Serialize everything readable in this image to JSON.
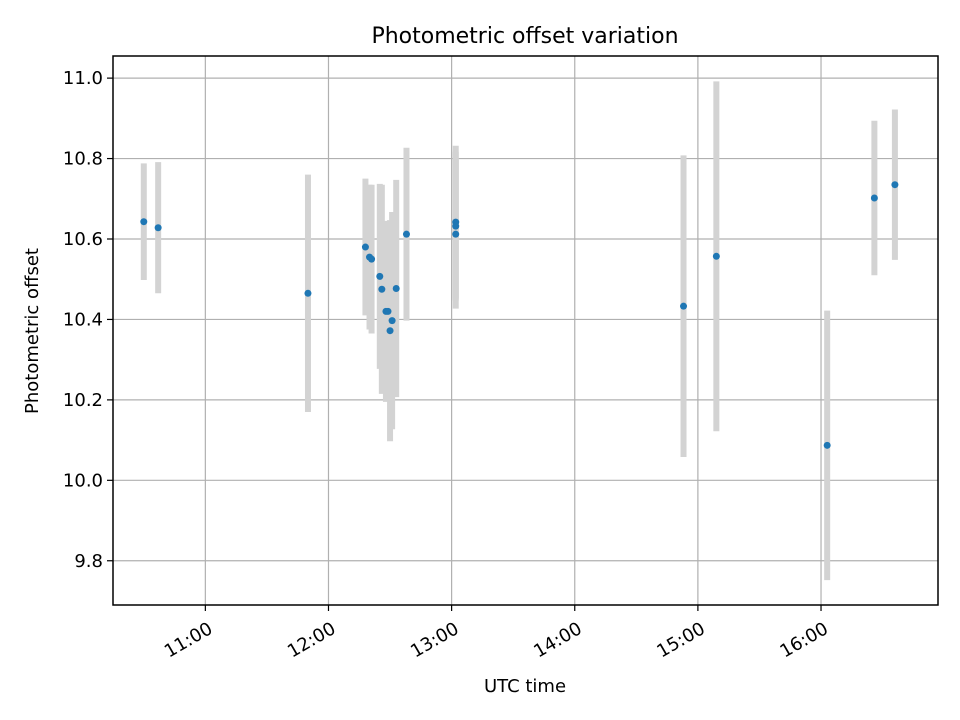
{
  "chart_data": {
    "type": "scatter",
    "title": "Photometric offset variation",
    "xlabel": "UTC time",
    "ylabel": "Photometric offset",
    "xlim": [
      "10:15",
      "16:57"
    ],
    "ylim": [
      9.69,
      11.055
    ],
    "grid": true,
    "error_bar_color": "#d3d3d3",
    "point_color": "#1f77b4",
    "x_ticks": [
      "11:00",
      "12:00",
      "13:00",
      "14:00",
      "15:00",
      "16:00"
    ],
    "y_ticks": [
      9.8,
      10.0,
      10.2,
      10.4,
      10.6,
      10.8,
      11.0
    ],
    "y_tick_labels": [
      "9.8",
      "10.0",
      "10.2",
      "10.4",
      "10.6",
      "10.8",
      "11.0"
    ],
    "points": [
      {
        "x": "10:30",
        "y": 10.643,
        "err": 0.145
      },
      {
        "x": "10:37",
        "y": 10.628,
        "err": 0.163
      },
      {
        "x": "11:50",
        "y": 10.465,
        "err": 0.295
      },
      {
        "x": "12:18",
        "y": 10.58,
        "err": 0.17
      },
      {
        "x": "12:20",
        "y": 10.555,
        "err": 0.18
      },
      {
        "x": "12:21",
        "y": 10.55,
        "err": 0.185
      },
      {
        "x": "12:25",
        "y": 10.507,
        "err": 0.23
      },
      {
        "x": "12:26",
        "y": 10.475,
        "err": 0.26
      },
      {
        "x": "12:28",
        "y": 10.42,
        "err": 0.225
      },
      {
        "x": "12:29",
        "y": 10.42,
        "err": 0.22
      },
      {
        "x": "12:30",
        "y": 10.372,
        "err": 0.275
      },
      {
        "x": "12:31",
        "y": 10.397,
        "err": 0.27
      },
      {
        "x": "12:33",
        "y": 10.477,
        "err": 0.27
      },
      {
        "x": "12:38",
        "y": 10.612,
        "err": 0.215
      },
      {
        "x": "13:02",
        "y": 10.642,
        "err": 0.19
      },
      {
        "x": "13:02",
        "y": 10.632,
        "err": 0.185
      },
      {
        "x": "13:02",
        "y": 10.612,
        "err": 0.185
      },
      {
        "x": "14:53",
        "y": 10.433,
        "err": 0.375
      },
      {
        "x": "15:09",
        "y": 10.557,
        "err": 0.435
      },
      {
        "x": "16:03",
        "y": 10.087,
        "err": 0.335
      },
      {
        "x": "16:26",
        "y": 10.702,
        "err": 0.192
      },
      {
        "x": "16:36",
        "y": 10.735,
        "err": 0.187
      }
    ]
  }
}
